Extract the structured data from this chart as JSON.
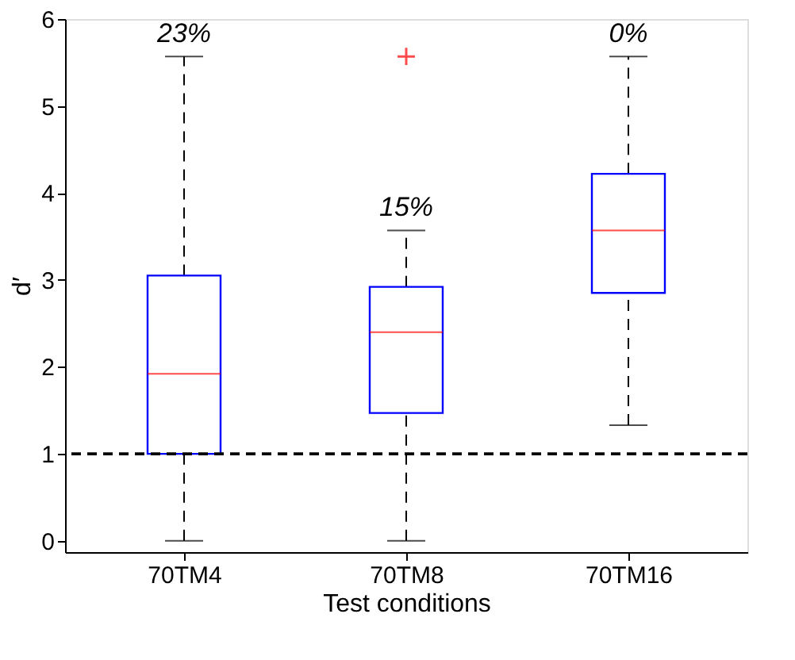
{
  "chart_data": {
    "type": "box",
    "xlabel": "Test conditions",
    "ylabel": "d′",
    "categories": [
      "70TM4",
      "70TM8",
      "70TM16"
    ],
    "boxes": [
      {
        "low": 0,
        "q1": 1.0,
        "median": 1.92,
        "q3": 3.05,
        "high": 5.57
      },
      {
        "low": 0,
        "q1": 1.47,
        "median": 2.4,
        "q3": 2.92,
        "high": 3.57,
        "outliers": [
          5.57
        ]
      },
      {
        "low": 1.33,
        "q1": 2.85,
        "median": 3.57,
        "q3": 4.22,
        "high": 5.57
      }
    ],
    "ylim": [
      -0.13,
      6
    ],
    "yticks": [
      0,
      1,
      2,
      3,
      4,
      5,
      6
    ],
    "grid": false,
    "ref_lines": [
      {
        "axis": "y",
        "value": 1,
        "label": null,
        "color": "#000000",
        "line_style": "dashed"
      }
    ],
    "annotations": [
      "23%",
      "15%",
      "0%"
    ]
  }
}
